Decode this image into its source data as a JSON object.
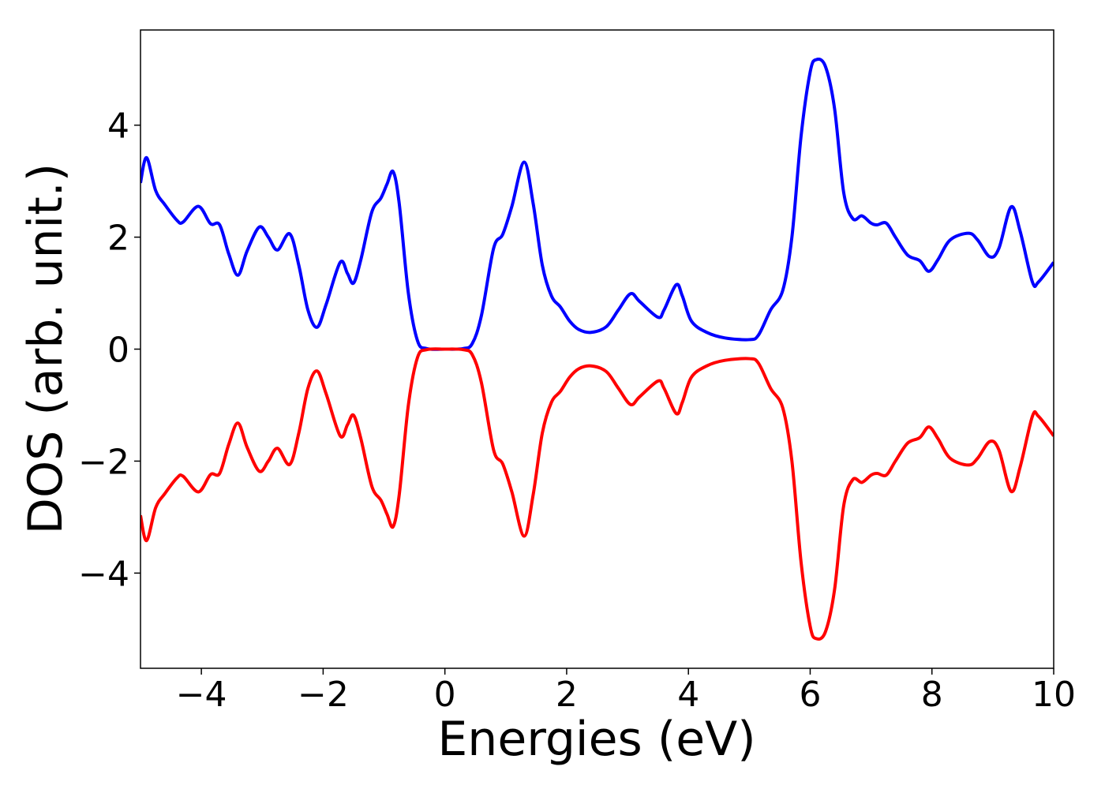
{
  "chart_data": {
    "type": "line",
    "xlabel": "Energies (eV)",
    "ylabel": "DOS (arb. unit.)",
    "xlim": [
      -5,
      10
    ],
    "ylim": [
      -5.7,
      5.7
    ],
    "xticks": [
      {
        "value": -4,
        "label": "−4"
      },
      {
        "value": -2,
        "label": "−2"
      },
      0,
      2,
      4,
      6,
      8,
      10
    ],
    "yticks": [
      {
        "value": -4,
        "label": "−4"
      },
      {
        "value": -2,
        "label": "−2"
      },
      0,
      2,
      4
    ],
    "grid": false,
    "x": [
      -5,
      -4.9,
      -4.75,
      -4.6,
      -4.4,
      -4.3,
      -4.05,
      -3.85,
      -3.7,
      -3.55,
      -3.4,
      -3.25,
      -3.05,
      -2.9,
      -2.75,
      -2.55,
      -2.4,
      -2.25,
      -2.1,
      -1.95,
      -1.72,
      -1.6,
      -1.5,
      -1.38,
      -1.2,
      -1.05,
      -0.95,
      -0.85,
      -0.75,
      -0.6,
      -0.45,
      -0.3,
      0,
      0.3,
      0.45,
      0.6,
      0.8,
      0.95,
      1.1,
      1.3,
      1.45,
      1.6,
      1.75,
      1.9,
      2.05,
      2.2,
      2.4,
      2.65,
      2.85,
      3.05,
      3.2,
      3.5,
      3.6,
      3.8,
      3.9,
      4.05,
      4.3,
      4.6,
      5.0,
      5.15,
      5.35,
      5.55,
      5.7,
      5.85,
      6.0,
      6.1,
      6.25,
      6.4,
      6.55,
      6.7,
      6.85,
      7.0,
      7.1,
      7.25,
      7.4,
      7.6,
      7.8,
      7.95,
      8.1,
      8.3,
      8.6,
      8.75,
      8.95,
      9.1,
      9.3,
      9.45,
      9.65,
      9.75,
      10.0
    ],
    "series": [
      {
        "color": "#0000ff",
        "values": [
          2.97,
          3.42,
          2.83,
          2.58,
          2.3,
          2.27,
          2.55,
          2.24,
          2.22,
          1.7,
          1.32,
          1.75,
          2.18,
          2.0,
          1.77,
          2.06,
          1.5,
          0.7,
          0.39,
          0.8,
          1.55,
          1.35,
          1.18,
          1.6,
          2.45,
          2.7,
          2.95,
          3.17,
          2.6,
          1.0,
          0.15,
          0.01,
          0.0,
          0.01,
          0.1,
          0.6,
          1.8,
          2.05,
          2.55,
          3.34,
          2.6,
          1.5,
          0.95,
          0.75,
          0.5,
          0.35,
          0.3,
          0.4,
          0.7,
          0.99,
          0.85,
          0.57,
          0.7,
          1.15,
          0.95,
          0.5,
          0.3,
          0.2,
          0.17,
          0.25,
          0.7,
          1.05,
          2.0,
          3.8,
          4.95,
          5.17,
          5.05,
          4.3,
          2.8,
          2.33,
          2.38,
          2.25,
          2.22,
          2.25,
          2.0,
          1.68,
          1.58,
          1.39,
          1.6,
          1.95,
          2.07,
          1.95,
          1.65,
          1.8,
          2.54,
          2.1,
          1.2,
          1.2,
          1.55
        ]
      },
      {
        "color": "#ff0000",
        "values": [
          -2.97,
          -3.42,
          -2.83,
          -2.58,
          -2.3,
          -2.27,
          -2.55,
          -2.24,
          -2.22,
          -1.7,
          -1.32,
          -1.75,
          -2.18,
          -2.0,
          -1.77,
          -2.06,
          -1.5,
          -0.7,
          -0.39,
          -0.8,
          -1.55,
          -1.35,
          -1.18,
          -1.6,
          -2.45,
          -2.7,
          -2.95,
          -3.17,
          -2.6,
          -1.0,
          -0.15,
          -0.01,
          0.0,
          -0.01,
          -0.1,
          -0.6,
          -1.8,
          -2.05,
          -2.55,
          -3.34,
          -2.6,
          -1.5,
          -0.95,
          -0.75,
          -0.5,
          -0.35,
          -0.3,
          -0.4,
          -0.7,
          -0.99,
          -0.85,
          -0.57,
          -0.7,
          -1.15,
          -0.95,
          -0.5,
          -0.3,
          -0.2,
          -0.17,
          -0.25,
          -0.7,
          -1.05,
          -2.0,
          -3.8,
          -4.95,
          -5.17,
          -5.05,
          -4.3,
          -2.8,
          -2.33,
          -2.38,
          -2.25,
          -2.22,
          -2.25,
          -2.0,
          -1.68,
          -1.58,
          -1.39,
          -1.6,
          -1.95,
          -2.07,
          -1.95,
          -1.65,
          -1.8,
          -2.54,
          -2.1,
          -1.2,
          -1.2,
          -1.55
        ]
      }
    ]
  }
}
